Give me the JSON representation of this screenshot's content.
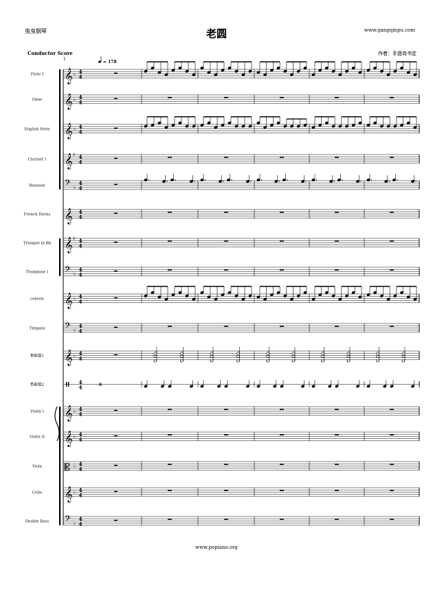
{
  "header": {
    "left": "虫虫钢琴",
    "title": "老圆",
    "right": "www.gangqinpu.com",
    "conductor": "Conductor Score",
    "composer": "作者：手提岛书定"
  },
  "score": {
    "measure_number": "1",
    "tempo": "= 178",
    "time_signature": [
      "4",
      "4"
    ],
    "measures": 6,
    "instruments": [
      {
        "name": "Flute I",
        "clef": "treble",
        "key": "flat1",
        "part": "melody"
      },
      {
        "name": "Oboe",
        "clef": "treble",
        "key": "flat1",
        "part": "rest"
      },
      {
        "name": "English Horn",
        "clef": "treble",
        "key": "flat1",
        "part": "horn"
      },
      {
        "name": "Clarinet I",
        "clef": "treble",
        "key": "sharp1",
        "part": "rest"
      },
      {
        "name": "Bassoon",
        "clef": "bass",
        "key": "flat1",
        "part": "bass"
      },
      {
        "name": "French Horns",
        "clef": "treble",
        "key": "none",
        "part": "rest"
      },
      {
        "name": "Trumpet in Bb",
        "clef": "treble",
        "key": "sharp1",
        "part": "rest"
      },
      {
        "name": "Trombone I",
        "clef": "bass",
        "key": "flat1",
        "part": "rest"
      },
      {
        "name": "celesta",
        "clef": "treble",
        "key": "flat1",
        "part": "melody"
      },
      {
        "name": "Timpani",
        "clef": "bass",
        "key": "flat1",
        "part": "rest"
      },
      {
        "name": "色彩组1",
        "clef": "treble",
        "key": "flat1",
        "part": "chords"
      },
      {
        "name": "色彩组2",
        "clef": "perc",
        "key": "none",
        "part": "perc"
      },
      {
        "name": "Violin I",
        "clef": "treble",
        "key": "flat1",
        "part": "rest"
      },
      {
        "name": "Violin II",
        "clef": "treble",
        "key": "flat1",
        "part": "rest"
      },
      {
        "name": "Viola",
        "clef": "alto",
        "key": "flat1",
        "part": "rest"
      },
      {
        "name": "Cello",
        "clef": "treble",
        "key": "flat1",
        "part": "rest"
      },
      {
        "name": "Double Bass",
        "clef": "bass",
        "key": "flat1",
        "part": "rest"
      }
    ]
  },
  "footer": {
    "url": "www.popiano.org"
  }
}
